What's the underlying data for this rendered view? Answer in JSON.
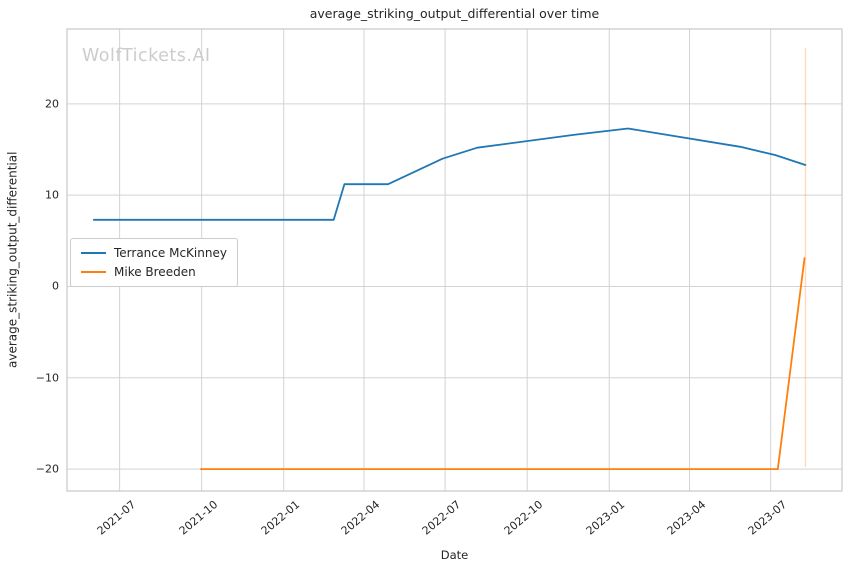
{
  "chart_data": {
    "type": "line",
    "title": "average_striking_output_differential over time",
    "xlabel": "Date",
    "ylabel": "average_striking_output_differential",
    "watermark": "WolfTickets.AI",
    "grid": true,
    "legend": {
      "position": "middle-left",
      "entries": [
        "Terrance McKinney",
        "Mike Breeden"
      ]
    },
    "xlim": [
      "2021-05-03",
      "2023-09-19"
    ],
    "ylim": [
      -22.4,
      28.2
    ],
    "x_ticks": [
      {
        "label": "2021-07",
        "date": "2021-07-01"
      },
      {
        "label": "2021-10",
        "date": "2021-10-01"
      },
      {
        "label": "2022-01",
        "date": "2022-01-01"
      },
      {
        "label": "2022-04",
        "date": "2022-04-01"
      },
      {
        "label": "2022-07",
        "date": "2022-07-01"
      },
      {
        "label": "2022-10",
        "date": "2022-10-01"
      },
      {
        "label": "2023-01",
        "date": "2023-01-01"
      },
      {
        "label": "2023-04",
        "date": "2023-04-01"
      },
      {
        "label": "2023-07",
        "date": "2023-07-01"
      }
    ],
    "y_ticks": [
      {
        "label": "20",
        "value": 20
      },
      {
        "label": "10",
        "value": 10
      },
      {
        "label": "0",
        "value": 0
      },
      {
        "label": "−10",
        "value": -10
      },
      {
        "label": "−20",
        "value": -20
      }
    ],
    "series": [
      {
        "name": "Terrance McKinney",
        "color": "#1f77b4",
        "points": [
          [
            "2021-06-02",
            7.3
          ],
          [
            "2022-02-26",
            7.3
          ],
          [
            "2022-03-10",
            11.2
          ],
          [
            "2022-04-28",
            11.2
          ],
          [
            "2022-06-28",
            14.0
          ],
          [
            "2022-08-06",
            15.2
          ],
          [
            "2022-11-22",
            16.6
          ],
          [
            "2023-01-22",
            17.3
          ],
          [
            "2023-05-28",
            15.3
          ],
          [
            "2023-07-06",
            14.4
          ],
          [
            "2023-08-09",
            13.3
          ]
        ]
      },
      {
        "name": "Mike Breeden",
        "color": "#ff7f0e",
        "points": [
          [
            "2021-09-30",
            -20
          ],
          [
            "2023-07-09",
            -20
          ],
          [
            "2023-08-08",
            3.1
          ]
        ]
      }
    ],
    "marker_line": {
      "date": "2023-08-09",
      "y_from": -19.8,
      "y_to": 26.1,
      "color": "#ff7f0e",
      "opacity": 0.28
    }
  },
  "colors": {
    "background": "#ffffff",
    "grid": "#d3d3d3",
    "spine": "#c8c8c8",
    "text": "#262626",
    "watermark": "#cccccc",
    "series_blue": "#1f77b4",
    "series_orange": "#ff7f0e"
  }
}
